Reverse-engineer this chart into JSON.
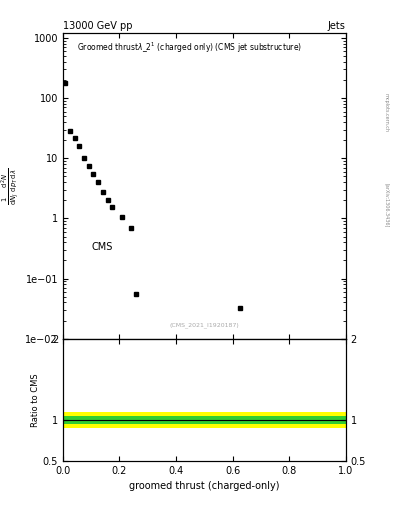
{
  "title_top_left": "13000 GeV pp",
  "title_top_right": "Jets",
  "plot_title": "Groomed thrust$\\lambda$_2$^1$ (charged only) (CMS jet substructure)",
  "xlabel": "groomed thrust (charged-only)",
  "ylabel_ratio": "Ratio to CMS",
  "watermark": "(CMS_2021_I1920187)",
  "arxiv": "[arXiv:1306.3436]",
  "cms_label": "CMS",
  "data_x": [
    0.008,
    0.025,
    0.042,
    0.058,
    0.075,
    0.092,
    0.108,
    0.125,
    0.142,
    0.158,
    0.175,
    0.208,
    0.242,
    0.258,
    0.625
  ],
  "data_y": [
    180.0,
    28.0,
    22.0,
    16.0,
    10.0,
    7.5,
    5.5,
    4.0,
    2.8,
    2.0,
    1.55,
    1.05,
    0.68,
    0.055,
    0.032
  ],
  "marker_color": "black",
  "marker_style": "s",
  "marker_size": 3.5,
  "ylim_main_log": [
    -2,
    3
  ],
  "ylim_main": [
    0.01,
    1200
  ],
  "xlim": [
    0,
    1
  ],
  "ratio_line_y": 1.0,
  "ratio_band_green_lower": 0.95,
  "ratio_band_green_upper": 1.05,
  "ratio_band_yellow_lower": 0.9,
  "ratio_band_yellow_upper": 1.1,
  "ratio_ylim": [
    0.5,
    2.0
  ],
  "ratio_yticks": [
    0.5,
    1.0,
    2.0
  ],
  "background_color": "#ffffff",
  "ylabel_parts": [
    "mathrm d^2N",
    "mathrm d N_J mathrm d p_T mathrm d lambda"
  ]
}
